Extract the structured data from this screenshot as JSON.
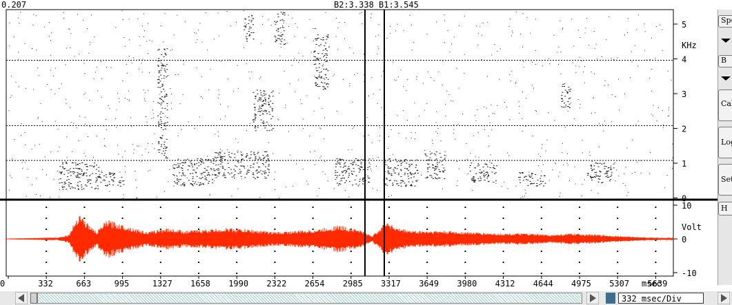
{
  "top_bar": {
    "left_readout": "0.207",
    "center_readout": "B2:3.338  B1:3.545"
  },
  "spectrogram": {
    "unit": "KHz",
    "ticks": [
      "5",
      "4",
      "3",
      "2",
      "1",
      "0"
    ]
  },
  "waveform": {
    "unit": "Volt",
    "ticks": [
      "10",
      "0",
      "-10"
    ],
    "color": "#ff2a00"
  },
  "time_axis": {
    "unit": "msec",
    "ticks": [
      "0",
      "332",
      "663",
      "995",
      "1327",
      "1658",
      "1990",
      "2322",
      "2654",
      "2985",
      "3317",
      "3649",
      "3980",
      "4312",
      "4644",
      "4975",
      "5307",
      "5639"
    ]
  },
  "sidebar": {
    "buttons": [
      {
        "label": "Spe"
      },
      {
        "label": "B"
      },
      {
        "label": "Cal"
      },
      {
        "label": "Log"
      },
      {
        "label": "Set"
      },
      {
        "label": "H"
      }
    ]
  },
  "bottom_bar": {
    "resolution": "332 msec/Div"
  },
  "icons": {
    "scroll_left": "triangle-left-icon",
    "scroll_right": "triangle-right-icon",
    "menu_arrow": "triangle-down-icon"
  }
}
